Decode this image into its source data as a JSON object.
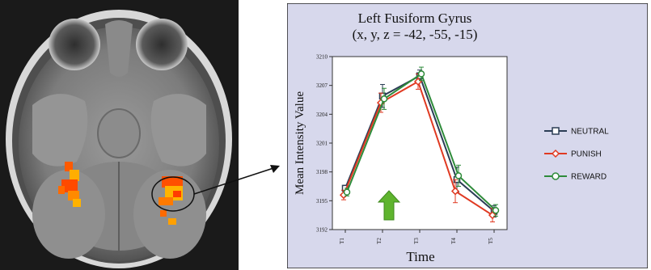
{
  "figure": {
    "left_panel": {
      "image": "axial brain MRI slice",
      "activation_colors": [
        "#ff4d00",
        "#ffb000",
        "#ff7a00"
      ]
    },
    "arrow_color": "#111111",
    "panel_background": "#d7d8ec"
  },
  "chart_data": {
    "type": "line",
    "title": "Left Fusiform Gyrus",
    "subtitle": "(x, y, z = -42, -55, -15)",
    "xlabel": "Time",
    "ylabel": "Mean Intensity Value",
    "categories": [
      "T1",
      "T2",
      "T3",
      "T4",
      "T5"
    ],
    "ylim": [
      3192,
      3210
    ],
    "yticks": [
      "3210",
      "3207",
      "3204",
      "3201",
      "3198",
      "3195",
      "3192"
    ],
    "grid": false,
    "legend_position": "right",
    "series": [
      {
        "name": "NEUTRAL",
        "color": "#2b3d55",
        "marker": "square",
        "values": [
          3196.3,
          3205.9,
          3208.0,
          3197.2,
          3193.9
        ],
        "error": [
          0.3,
          1.2,
          0.6,
          1.3,
          0.6
        ]
      },
      {
        "name": "PUNISH",
        "color": "#e03a22",
        "marker": "diamond",
        "values": [
          3195.6,
          3205.2,
          3207.4,
          3196.0,
          3193.5
        ],
        "error": [
          0.5,
          1.0,
          0.8,
          1.2,
          0.7
        ]
      },
      {
        "name": "REWARD",
        "color": "#2e8b3a",
        "marker": "circle",
        "values": [
          3195.9,
          3205.6,
          3208.2,
          3197.6,
          3194.0
        ],
        "error": [
          0.4,
          1.1,
          0.7,
          1.1,
          0.6
        ]
      }
    ],
    "annotation": {
      "label": "green up arrow",
      "x_category": "T2",
      "color": "#5fb42e"
    }
  }
}
